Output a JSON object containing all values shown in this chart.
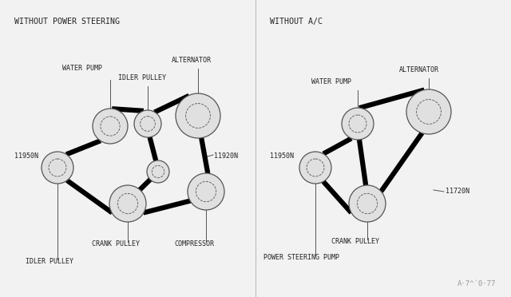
{
  "bg_color": "#f2f2f2",
  "title1": "WITHOUT POWER STEERING",
  "title2": "WITHOUT A/C",
  "watermark": "A·7^´0·77",
  "font_family": "monospace",
  "belt_linewidth": 4.5,
  "belt_color": "#000000",
  "pulley_edgecolor": "#555555",
  "pulley_facecolor": "#e0e0e0",
  "label_fontsize": 6.0,
  "title_fontsize": 7.2,
  "d1": {
    "wp": [
      138,
      158,
      22
    ],
    "ip": [
      185,
      155,
      17
    ],
    "alt": [
      248,
      145,
      28
    ],
    "ipb": [
      72,
      210,
      20
    ],
    "cp": [
      160,
      255,
      23
    ],
    "si": [
      198,
      215,
      14
    ],
    "comp": [
      258,
      240,
      23
    ]
  },
  "d2": {
    "wp": [
      448,
      155,
      20
    ],
    "alt": [
      537,
      140,
      28
    ],
    "ps": [
      395,
      210,
      20
    ],
    "cp": [
      460,
      255,
      23
    ]
  },
  "label_color": "#222222",
  "line_color": "#555555"
}
